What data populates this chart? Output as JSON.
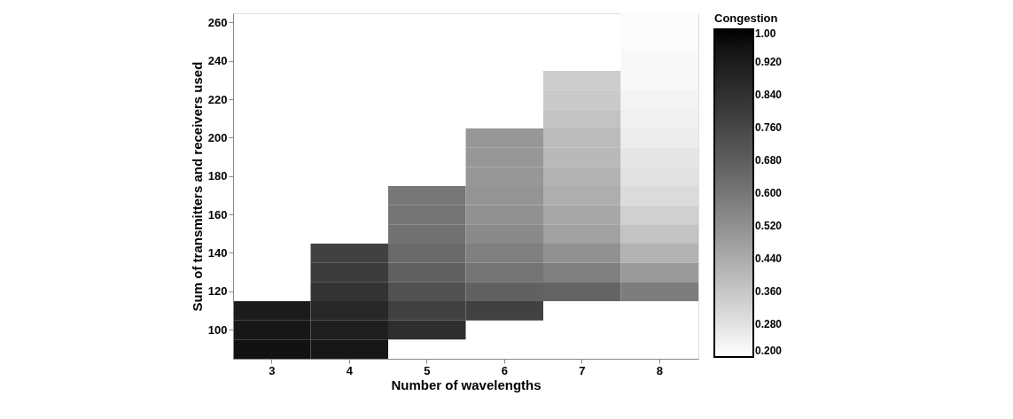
{
  "chart_data": {
    "type": "heatmap",
    "xlabel": "Number of wavelengths",
    "ylabel": "Sum of transmitters and receivers used",
    "legend_title": "Congestion",
    "categories": [
      "3",
      "4",
      "5",
      "6",
      "7",
      "8"
    ],
    "y_categories": [
      "260",
      null,
      "240",
      null,
      "220",
      null,
      "200",
      null,
      "180",
      null,
      "160",
      null,
      "140",
      null,
      "120",
      null,
      "100",
      null
    ],
    "clim": [
      0.2,
      1.0
    ],
    "cticks": [
      {
        "value": 1.0,
        "label": "1.00"
      },
      {
        "value": 0.92,
        "label": "0.920"
      },
      {
        "value": 0.84,
        "label": "0.840"
      },
      {
        "value": 0.76,
        "label": "0.760"
      },
      {
        "value": 0.68,
        "label": "0.680"
      },
      {
        "value": 0.6,
        "label": "0.600"
      },
      {
        "value": 0.52,
        "label": "0.520"
      },
      {
        "value": 0.44,
        "label": "0.440"
      },
      {
        "value": 0.36,
        "label": "0.360"
      },
      {
        "value": 0.28,
        "label": "0.280"
      },
      {
        "value": 0.2,
        "label": "0.200"
      }
    ],
    "cells": [
      [
        null,
        null,
        null,
        null,
        null,
        0.21
      ],
      [
        null,
        null,
        null,
        null,
        null,
        0.21
      ],
      [
        null,
        null,
        null,
        null,
        null,
        0.22
      ],
      [
        null,
        null,
        null,
        null,
        0.34,
        0.22
      ],
      [
        null,
        null,
        null,
        null,
        0.35,
        0.23
      ],
      [
        null,
        null,
        null,
        null,
        0.37,
        0.24
      ],
      [
        null,
        null,
        null,
        0.5,
        0.39,
        0.25
      ],
      [
        null,
        null,
        null,
        0.5,
        0.4,
        0.27
      ],
      [
        null,
        null,
        null,
        0.5,
        0.42,
        0.28
      ],
      [
        null,
        null,
        0.6,
        0.51,
        0.43,
        0.3
      ],
      [
        null,
        null,
        0.61,
        0.52,
        0.45,
        0.33
      ],
      [
        null,
        null,
        0.62,
        0.54,
        0.47,
        0.37
      ],
      [
        null,
        0.78,
        0.64,
        0.57,
        0.52,
        0.42
      ],
      [
        null,
        0.8,
        0.67,
        0.61,
        0.57,
        0.49
      ],
      [
        null,
        0.83,
        0.72,
        0.67,
        0.66,
        0.58
      ],
      [
        0.92,
        0.87,
        0.78,
        0.78,
        null,
        null
      ],
      [
        0.94,
        0.91,
        0.85,
        null,
        null,
        null
      ],
      [
        0.96,
        0.94,
        null,
        null,
        null,
        null
      ]
    ]
  }
}
